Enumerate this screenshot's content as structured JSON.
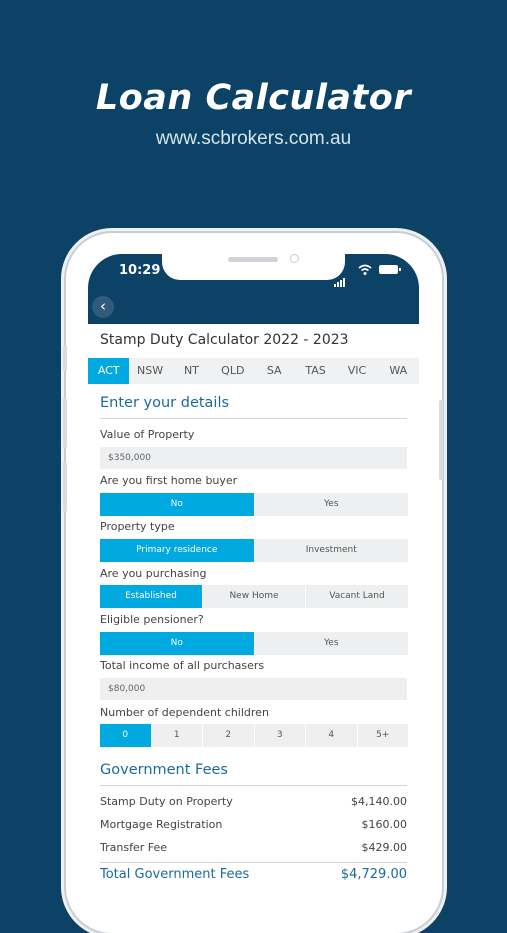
{
  "promo": {
    "title": "Loan Calculator",
    "url": "www.scbrokers.com.au"
  },
  "status": {
    "time": "10:29"
  },
  "screen": {
    "title": "Stamp Duty Calculator 2022 - 2023",
    "states": [
      "ACT",
      "NSW",
      "NT",
      "QLD",
      "SA",
      "TAS",
      "VIC",
      "WA"
    ],
    "active_state": "ACT"
  },
  "details": {
    "heading": "Enter your details",
    "value_label": "Value of Property",
    "value": "$350,000",
    "first_home_label": "Are you first home buyer",
    "first_home_options": [
      "No",
      "Yes"
    ],
    "property_type_label": "Property type",
    "property_type_options": [
      "Primary residence",
      "Investment"
    ],
    "purchasing_label": "Are you purchasing",
    "purchasing_options": [
      "Established",
      "New Home",
      "Vacant Land"
    ],
    "pensioner_label": "Eligible pensioner?",
    "pensioner_options": [
      "No",
      "Yes"
    ],
    "income_label": "Total income of all purchasers",
    "income": "$80,000",
    "children_label": "Number of dependent children",
    "children_options": [
      "0",
      "1",
      "2",
      "3",
      "4",
      "5+"
    ]
  },
  "fees": {
    "heading": "Government Fees",
    "items": [
      {
        "label": "Stamp Duty on Property",
        "value": "$4,140.00"
      },
      {
        "label": "Mortgage Registration",
        "value": "$160.00"
      },
      {
        "label": "Transfer Fee",
        "value": "$429.00"
      }
    ],
    "total_label": "Total Government Fees",
    "total_value": "$4,729.00"
  },
  "colors": {
    "background": "#0b4266",
    "accent": "#00aae0",
    "heading": "#1a6a9c"
  }
}
